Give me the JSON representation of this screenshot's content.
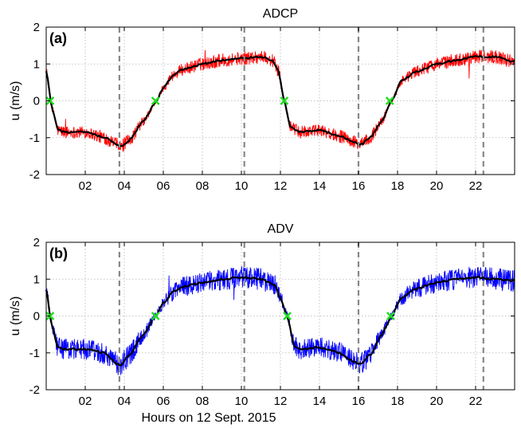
{
  "chart_data": [
    {
      "type": "line",
      "panel_label": "(a)",
      "title": "ADCP",
      "ylabel": "u (m/s)",
      "xlabel": "",
      "xlim": [
        0,
        24
      ],
      "ylim": [
        -2,
        2
      ],
      "xticks": [
        2,
        4,
        6,
        8,
        10,
        12,
        14,
        16,
        18,
        20,
        22
      ],
      "xtick_labels": [
        "02",
        "04",
        "06",
        "08",
        "10",
        "12",
        "14",
        "16",
        "18",
        "20",
        "22"
      ],
      "yticks": [
        -2,
        -1,
        0,
        1,
        2
      ],
      "ytick_labels": [
        "-2",
        "-1",
        "0",
        "1",
        "2"
      ],
      "grid": true,
      "raw_color": "#ff0000",
      "mean_color": "#000000",
      "raw_spread": 0.18,
      "mean_series": {
        "x": [
          0,
          0.3,
          0.6,
          1,
          2,
          3,
          3.5,
          3.8,
          4.2,
          5,
          5.65,
          6,
          6.5,
          7,
          8,
          9,
          10,
          11,
          11.6,
          11.9,
          12.2,
          12.5,
          13,
          14,
          15,
          15.7,
          16.1,
          16.6,
          17.2,
          17.7,
          18.2,
          19,
          20,
          21,
          22,
          23,
          24
        ],
        "y": [
          0.8,
          -0.2,
          -0.8,
          -0.85,
          -0.85,
          -1.0,
          -1.15,
          -1.25,
          -1.1,
          -0.55,
          0.0,
          0.35,
          0.7,
          0.85,
          1.0,
          1.1,
          1.15,
          1.2,
          1.1,
          0.8,
          0.0,
          -0.7,
          -0.85,
          -0.8,
          -0.95,
          -1.1,
          -1.2,
          -1.0,
          -0.55,
          0.0,
          0.55,
          0.8,
          1.0,
          1.1,
          1.2,
          1.2,
          1.05
        ]
      },
      "zero_crossings": [
        0.2,
        5.6,
        12.2,
        17.6
      ],
      "vertical_lines": [
        3.75,
        10.15,
        16.0,
        22.4
      ],
      "marker_color": "#22dd22",
      "vline_color": "#888888"
    },
    {
      "type": "line",
      "panel_label": "(b)",
      "title": "ADV",
      "ylabel": "u (m/s)",
      "xlabel": "Hours on 12 Sept. 2015",
      "xlim": [
        0,
        24
      ],
      "ylim": [
        -2,
        2
      ],
      "xticks": [
        2,
        4,
        6,
        8,
        10,
        12,
        14,
        16,
        18,
        20,
        22
      ],
      "xtick_labels": [
        "02",
        "04",
        "06",
        "08",
        "10",
        "12",
        "14",
        "16",
        "18",
        "20",
        "22"
      ],
      "yticks": [
        -2,
        -1,
        0,
        1,
        2
      ],
      "ytick_labels": [
        "-2",
        "-1",
        "0",
        "1",
        "2"
      ],
      "grid": true,
      "raw_color": "#0000ff",
      "mean_color": "#000000",
      "raw_spread": 0.3,
      "mean_series": {
        "x": [
          0,
          0.3,
          0.6,
          1,
          2,
          3,
          3.4,
          3.75,
          4.2,
          5,
          5.6,
          6,
          6.5,
          7,
          8,
          9,
          10,
          11,
          11.7,
          12.0,
          12.35,
          12.7,
          13,
          14,
          15,
          15.6,
          16.1,
          16.6,
          17.2,
          17.7,
          18.2,
          19,
          20,
          21,
          22,
          23,
          24
        ],
        "y": [
          0.7,
          -0.3,
          -0.85,
          -0.9,
          -0.9,
          -1.0,
          -1.2,
          -1.35,
          -1.1,
          -0.5,
          0.0,
          0.35,
          0.65,
          0.8,
          0.9,
          1.0,
          1.05,
          1.0,
          0.85,
          0.5,
          0.0,
          -0.8,
          -0.9,
          -0.85,
          -1.0,
          -1.2,
          -1.3,
          -1.05,
          -0.5,
          0.0,
          0.5,
          0.75,
          0.9,
          1.0,
          1.05,
          1.0,
          0.95
        ]
      },
      "zero_crossings": [
        0.2,
        5.6,
        12.35,
        17.65
      ],
      "vertical_lines": [
        3.75,
        10.15,
        16.0,
        22.4
      ],
      "marker_color": "#22dd22",
      "vline_color": "#888888"
    }
  ]
}
